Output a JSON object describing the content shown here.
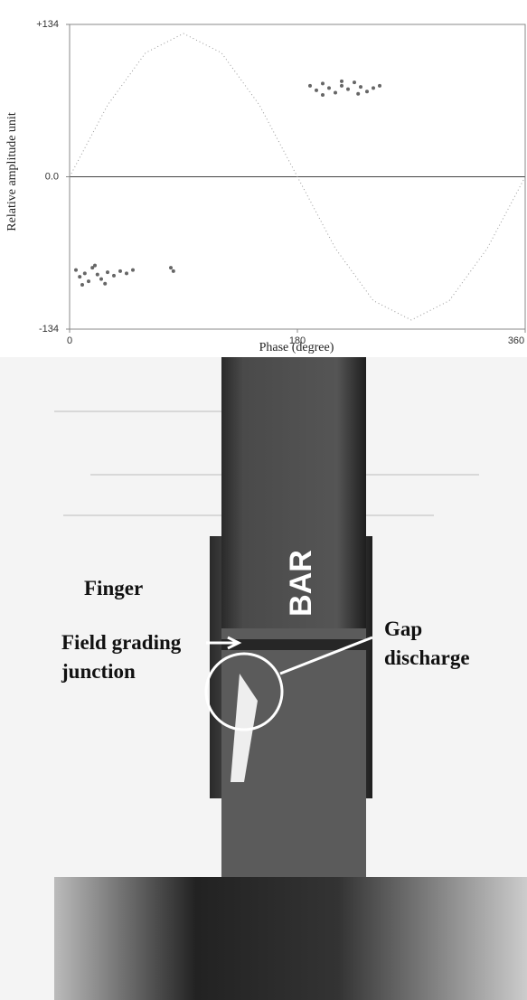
{
  "chart_data": {
    "type": "scatter",
    "x_label": "Phase (degree)",
    "y_label": "Relative amplitude unit",
    "xlim": [
      0,
      360
    ],
    "ylim": [
      -134,
      134
    ],
    "xticks": [
      0,
      180,
      360
    ],
    "yticks": [
      {
        "value": 134,
        "label": "+134"
      },
      {
        "value": 0,
        "label": "0.0"
      },
      {
        "value": -134,
        "label": "-134"
      }
    ],
    "series": [
      {
        "color": "#666666",
        "x": [
          190,
          195,
          200,
          205,
          210,
          215,
          220,
          225,
          230,
          235,
          240,
          245,
          200,
          215,
          228,
          5,
          8,
          12,
          15,
          18,
          22,
          25,
          30,
          35,
          40,
          45,
          50,
          10,
          20,
          28,
          80,
          82
        ],
        "values": [
          80,
          76,
          82,
          78,
          74,
          80,
          77,
          83,
          79,
          75,
          78,
          80,
          72,
          84,
          73,
          -82,
          -88,
          -85,
          -92,
          -80,
          -86,
          -90,
          -84,
          -87,
          -83,
          -85,
          -82,
          -95,
          -78,
          -94,
          -80,
          -83
        ]
      }
    ],
    "reference": {
      "color": "#999999",
      "x": [
        0,
        30,
        60,
        90,
        120,
        150,
        180,
        210,
        240,
        270,
        300,
        330,
        360
      ],
      "values": [
        0,
        63,
        109,
        126,
        109,
        63,
        0,
        -63,
        -109,
        -126,
        -109,
        -63,
        0
      ]
    }
  },
  "photo": {
    "labels": [
      "Finger",
      "BAR",
      "Field grading",
      "junction",
      "Gap",
      "discharge"
    ]
  }
}
